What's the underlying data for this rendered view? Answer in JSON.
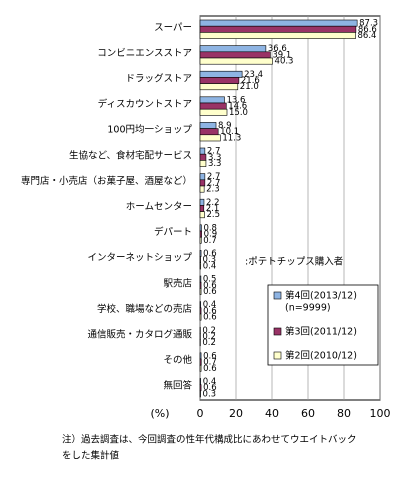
{
  "chart_data": {
    "type": "bar",
    "orientation": "horizontal",
    "categories": [
      "スーパー",
      "コンビニエンスストア",
      "ドラッグストア",
      "ディスカウントストア",
      "100円均一ショップ",
      "生協など、食材宅配サービス",
      "専門店・小売店（お菓子屋、酒屋など）",
      "ホームセンター",
      "デパート",
      "インターネットショップ",
      "駅売店",
      "学校、職場などの売店",
      "通信販売・カタログ通販",
      "その他",
      "無回答"
    ],
    "series": [
      {
        "name": "第4回(2013/12)",
        "note": "(n=9999)",
        "color": "#8eb4e3",
        "values": [
          87.3,
          36.6,
          23.4,
          13.6,
          8.9,
          2.7,
          2.7,
          2.2,
          0.8,
          0.6,
          0.5,
          0.4,
          0.2,
          0.6,
          0.4
        ],
        "value_labels": [
          "87.3",
          "36.6",
          "23.4",
          "13.6",
          "8.9",
          "2.7",
          "2.7",
          "2.2",
          "0.8",
          "0.6",
          "0.5",
          "0.4",
          "0.2",
          "0.6",
          "0.4"
        ]
      },
      {
        "name": "第3回(2011/12)",
        "color": "#993366",
        "values": [
          86.6,
          39.1,
          21.6,
          14.6,
          10.1,
          3.3,
          2.7,
          2.1,
          0.9,
          0.3,
          0.6,
          0.6,
          0.2,
          0.7,
          0.6
        ],
        "value_labels": [
          "86.6",
          "39.1",
          "21.6",
          "14.6",
          "10.1",
          "3.3",
          "2.7",
          "2.1",
          "0.9",
          "0.3",
          "0.6",
          "0.6",
          "0.2",
          "0.7",
          "0.6"
        ]
      },
      {
        "name": "第2回(2010/12)",
        "color": "#ffffcc",
        "values": [
          86.4,
          40.3,
          21.0,
          15.0,
          11.3,
          3.3,
          2.3,
          2.5,
          0.7,
          0.4,
          0.6,
          0.6,
          0.2,
          0.6,
          0.3
        ],
        "value_labels": [
          "86.4",
          "40.3",
          "21.0",
          "15.0",
          "11.3",
          "3.3",
          "2.3",
          "2.5",
          "0.7",
          "0.4",
          "0.6",
          "0.6",
          "0.2",
          "0.6",
          "0.3"
        ]
      }
    ],
    "xlim": [
      0,
      100
    ],
    "xticks": [
      0,
      20,
      40,
      60,
      80,
      100
    ],
    "xlabel": "(%)",
    "grid": true,
    "annotation": ":ポテトチップス購入者",
    "footnote": [
      "注）過去調査は、今回調査の性年代構成比にあわせてウエイトバック",
      "をした集計値"
    ]
  }
}
